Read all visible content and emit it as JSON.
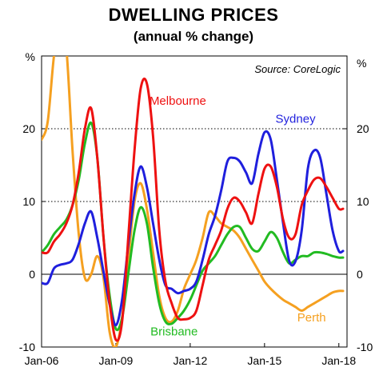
{
  "title": "DWELLING PRICES",
  "subtitle": "(annual % change)",
  "source": "Source: CoreLogic",
  "unit_left": "%",
  "unit_right": "%",
  "chart_data": {
    "type": "line",
    "title": "DWELLING PRICES",
    "subtitle": "(annual % change)",
    "ylim": [
      -10,
      30
    ],
    "yticks": [
      -10,
      0,
      10,
      20
    ],
    "ytick_labels": [
      "-10",
      "0",
      "10",
      "20"
    ],
    "xlim": [
      2006.0,
      2018.33
    ],
    "xticks": [
      2006,
      2009,
      2012,
      2015,
      2018
    ],
    "xtick_labels": [
      "Jan-06",
      "Jan-09",
      "Jan-12",
      "Jan-15",
      "Jan-18"
    ],
    "gridlines": [
      10,
      20
    ],
    "zero_line": true,
    "colors": {
      "Melbourne": "#ee1111",
      "Sydney": "#1f1fdd",
      "Brisbane": "#22bb22",
      "Perth": "#f5a020"
    },
    "series": [
      {
        "name": "Sydney",
        "x": [
          2006.0,
          2006.25,
          2006.5,
          2006.75,
          2007.0,
          2007.25,
          2007.5,
          2007.75,
          2008.0,
          2008.25,
          2008.5,
          2008.75,
          2009.0,
          2009.25,
          2009.5,
          2009.75,
          2010.0,
          2010.25,
          2010.5,
          2010.75,
          2011.0,
          2011.25,
          2011.5,
          2011.75,
          2012.0,
          2012.25,
          2012.5,
          2012.75,
          2013.0,
          2013.25,
          2013.5,
          2013.75,
          2014.0,
          2014.25,
          2014.5,
          2014.75,
          2015.0,
          2015.25,
          2015.5,
          2015.75,
          2016.0,
          2016.25,
          2016.5,
          2016.75,
          2017.0,
          2017.25,
          2017.5,
          2017.75,
          2018.0,
          2018.17
        ],
        "values": [
          -1.2,
          -1.2,
          0.8,
          1.3,
          1.5,
          2.0,
          4.2,
          7.0,
          8.6,
          5.0,
          0.3,
          -4.2,
          -7.0,
          -3.5,
          4.0,
          11.0,
          14.8,
          12.0,
          7.0,
          2.0,
          -1.5,
          -2.0,
          -2.6,
          -2.3,
          -2.0,
          -1.0,
          2.0,
          5.5,
          8.0,
          11.5,
          15.5,
          16.0,
          15.5,
          14.0,
          12.5,
          16.5,
          19.5,
          18.5,
          13.0,
          7.0,
          1.8,
          1.8,
          6.0,
          14.5,
          17.0,
          16.0,
          11.0,
          6.0,
          3.2,
          3.2
        ]
      },
      {
        "name": "Melbourne",
        "x": [
          2006.0,
          2006.25,
          2006.5,
          2006.75,
          2007.0,
          2007.25,
          2007.5,
          2007.75,
          2008.0,
          2008.25,
          2008.5,
          2008.75,
          2009.0,
          2009.25,
          2009.5,
          2009.75,
          2010.0,
          2010.25,
          2010.5,
          2010.75,
          2011.0,
          2011.25,
          2011.5,
          2011.75,
          2012.0,
          2012.25,
          2012.5,
          2012.75,
          2013.0,
          2013.25,
          2013.5,
          2013.75,
          2014.0,
          2014.25,
          2014.5,
          2014.75,
          2015.0,
          2015.25,
          2015.5,
          2015.75,
          2016.0,
          2016.25,
          2016.5,
          2016.75,
          2017.0,
          2017.25,
          2017.5,
          2017.75,
          2018.0,
          2018.17
        ],
        "values": [
          3.0,
          3.0,
          4.5,
          5.5,
          7.0,
          9.5,
          14.0,
          20.0,
          22.8,
          16.0,
          5.0,
          -4.0,
          -9.0,
          -6.5,
          5.0,
          17.0,
          25.5,
          26.2,
          19.0,
          6.0,
          -1.0,
          -4.0,
          -6.0,
          -6.2,
          -6.0,
          -5.0,
          -1.5,
          2.0,
          4.0,
          6.0,
          9.0,
          10.5,
          10.0,
          8.5,
          7.0,
          11.0,
          14.5,
          14.8,
          12.0,
          7.5,
          5.0,
          5.5,
          9.5,
          11.5,
          13.0,
          13.2,
          12.0,
          10.5,
          9.0,
          9.0
        ]
      },
      {
        "name": "Brisbane",
        "x": [
          2006.0,
          2006.25,
          2006.5,
          2006.75,
          2007.0,
          2007.25,
          2007.5,
          2007.75,
          2008.0,
          2008.25,
          2008.5,
          2008.75,
          2009.0,
          2009.25,
          2009.5,
          2009.75,
          2010.0,
          2010.25,
          2010.5,
          2010.75,
          2011.0,
          2011.25,
          2011.5,
          2011.75,
          2012.0,
          2012.25,
          2012.5,
          2012.75,
          2013.0,
          2013.25,
          2013.5,
          2013.75,
          2014.0,
          2014.25,
          2014.5,
          2014.75,
          2015.0,
          2015.25,
          2015.5,
          2015.75,
          2016.0,
          2016.25,
          2016.5,
          2016.75,
          2017.0,
          2017.25,
          2017.5,
          2017.75,
          2018.0,
          2018.17
        ],
        "values": [
          3.0,
          4.0,
          5.5,
          6.5,
          7.5,
          9.5,
          13.0,
          18.0,
          20.8,
          16.0,
          5.0,
          -3.0,
          -7.5,
          -6.0,
          0.0,
          6.0,
          9.2,
          7.0,
          1.0,
          -4.0,
          -6.5,
          -6.8,
          -6.0,
          -5.0,
          -3.5,
          -1.5,
          0.5,
          1.5,
          2.5,
          4.0,
          5.5,
          6.5,
          6.5,
          5.0,
          3.5,
          3.2,
          4.5,
          5.8,
          5.0,
          3.0,
          1.5,
          2.0,
          2.5,
          2.5,
          3.0,
          3.0,
          2.8,
          2.5,
          2.3,
          2.3
        ]
      },
      {
        "name": "Perth",
        "x": [
          2006.0,
          2006.25,
          2006.5,
          2006.75,
          2007.0,
          2007.25,
          2007.5,
          2007.75,
          2008.0,
          2008.25,
          2008.5,
          2008.75,
          2009.0,
          2009.25,
          2009.5,
          2009.75,
          2010.0,
          2010.25,
          2010.5,
          2010.75,
          2011.0,
          2011.25,
          2011.5,
          2011.75,
          2012.0,
          2012.25,
          2012.5,
          2012.75,
          2013.0,
          2013.25,
          2013.5,
          2013.75,
          2014.0,
          2014.25,
          2014.5,
          2014.75,
          2015.0,
          2015.25,
          2015.5,
          2015.75,
          2016.0,
          2016.25,
          2016.5,
          2016.75,
          2017.0,
          2017.25,
          2017.5,
          2017.75,
          2018.0,
          2018.17
        ],
        "values": [
          18.5,
          21.0,
          30.0,
          35.0,
          31.0,
          17.0,
          5.5,
          -0.5,
          0.0,
          2.5,
          -0.5,
          -8.0,
          -10.0,
          -6.0,
          2.0,
          10.0,
          12.5,
          9.0,
          3.0,
          -3.0,
          -6.0,
          -6.5,
          -5.0,
          -2.0,
          0.0,
          2.0,
          5.0,
          8.5,
          8.0,
          7.0,
          6.5,
          6.0,
          5.0,
          3.5,
          2.0,
          0.5,
          -1.0,
          -2.0,
          -2.8,
          -3.5,
          -4.0,
          -4.5,
          -5.0,
          -4.5,
          -4.0,
          -3.5,
          -3.0,
          -2.5,
          -2.3,
          -2.3
        ]
      }
    ],
    "series_labels": [
      "Melbourne",
      "Sydney",
      "Brisbane",
      "Perth"
    ]
  }
}
